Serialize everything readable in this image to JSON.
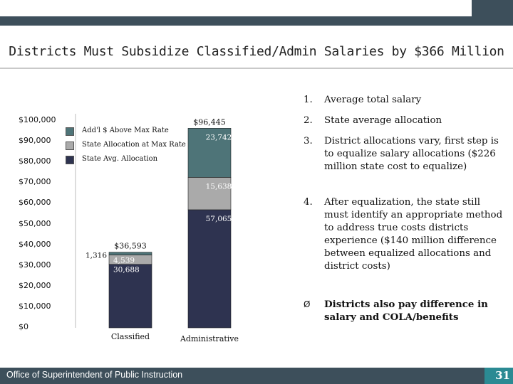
{
  "slide": {
    "title": "Districts Must Subsidize Classified/Admin Salaries by $366 Million",
    "footer_text": "Office of Superintendent of Public Instruction",
    "page_number": "31",
    "colors": {
      "header_dark": "#3d4f5b",
      "accent_teal": "#2b8a93",
      "footer": "#3d4f5b"
    }
  },
  "points": [
    {
      "num": "1.",
      "text": "Average total salary"
    },
    {
      "num": "2.",
      "text": "State average allocation"
    },
    {
      "num": "3.",
      "text": "District allocations vary, first step is to equalize salary allocations ($226 million state cost to equalize)"
    },
    {
      "num": "4.",
      "text": "After equalization, the state still must identify an appropriate method to address true costs districts experience ($140 million difference between equalized allocations and district costs)"
    },
    {
      "num": "Ø",
      "text": "Districts also pay difference in salary and COLA/benefits"
    }
  ],
  "chart_data": {
    "type": "bar",
    "stacked": true,
    "categories": [
      "Classified",
      "Administrative"
    ],
    "series": [
      {
        "name": "State Avg. Allocation",
        "values": [
          30688,
          57065
        ],
        "labels": [
          "30,688",
          "57,065"
        ],
        "color": "#2e3350"
      },
      {
        "name": "State Allocation at Max Rate",
        "values": [
          4539,
          15638
        ],
        "labels": [
          "4,539",
          "15,638"
        ],
        "color": "#aaaaaa"
      },
      {
        "name": "Add'l $ Above Max Rate",
        "values": [
          1316,
          23742
        ],
        "labels": [
          "1,316",
          "23,742"
        ],
        "color": "#4e7478"
      }
    ],
    "totals": [
      36593,
      96445
    ],
    "total_labels": [
      "$36,593",
      "$96,445"
    ],
    "yticks": [
      "$0",
      "$10,000",
      "$20,000",
      "$30,000",
      "$40,000",
      "$50,000",
      "$60,000",
      "$70,000",
      "$80,000",
      "$90,000",
      "$100,000"
    ],
    "ylim": [
      0,
      100000
    ],
    "legend_position": "top-left"
  }
}
